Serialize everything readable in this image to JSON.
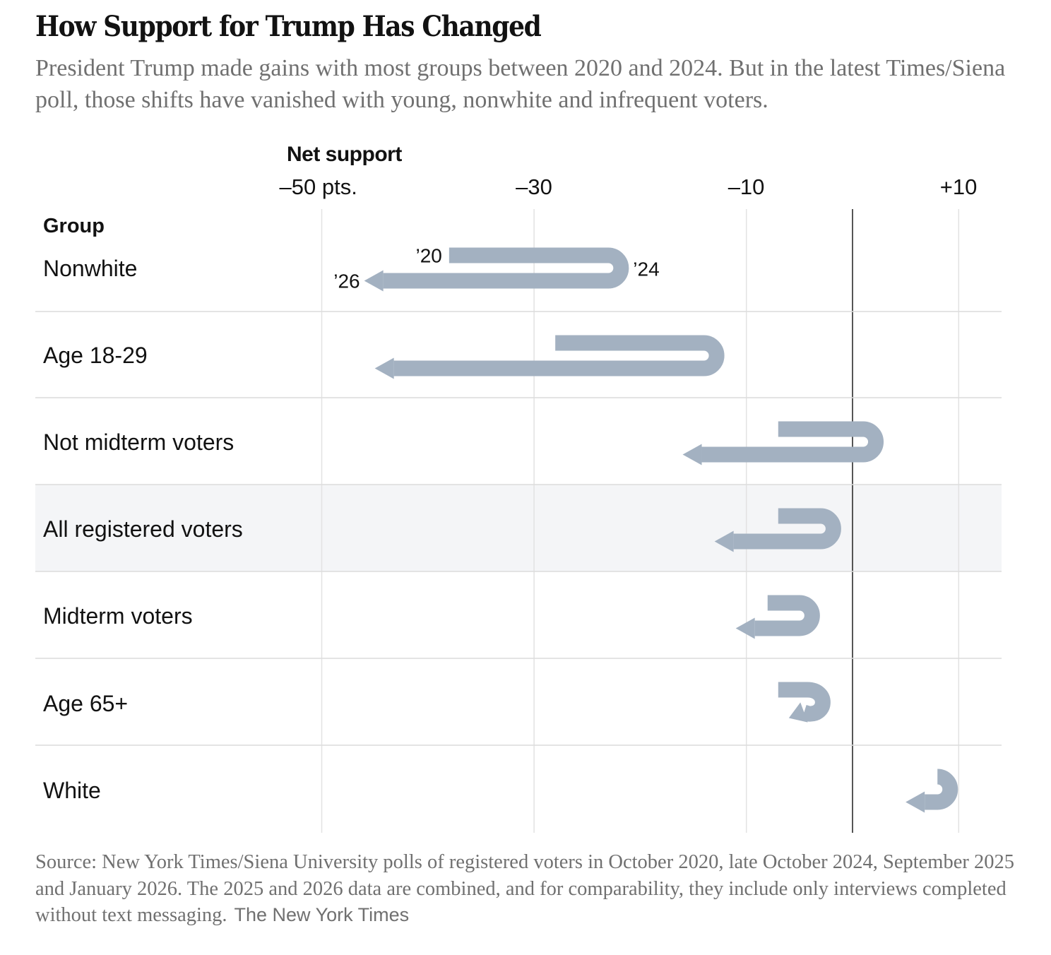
{
  "title": "How Support for Trump Has Changed",
  "subtitle": "President Trump made gains with most groups between 2020 and 2024. But in the latest Times/Siena poll, those shifts have vanished with young, nonwhite and infrequent voters.",
  "axis_title": "Net support",
  "group_header": "Group",
  "source_text": "Source: New York Times/Siena University polls of registered voters in October 2020, late October 2024, September 2025 and January 2026. The 2025 and 2026 data are combined, and for comparability, they include only interviews completed without text messaging.",
  "credit": "The New York Times",
  "colors": {
    "arrow": "#a3b1c1",
    "highlight_row": "#f4f5f7",
    "grid": "#e2e2e2",
    "zero_line": "#555555",
    "divider": "#dcdcdc",
    "text": "#121212",
    "muted_text": "#707070"
  },
  "chart_data": {
    "type": "arrow-path",
    "title": "How Support for Trump Has Changed",
    "xlabel": "Net support",
    "unit": "pts.",
    "xlim": [
      -50,
      10
    ],
    "xticks": [
      {
        "value": -50,
        "label": "–50 pts."
      },
      {
        "value": -30,
        "label": "–30"
      },
      {
        "value": -10,
        "label": "–10"
      },
      {
        "value": 10,
        "label": "+10"
      }
    ],
    "zero_line": 0,
    "grid": true,
    "year_labels": [
      "’20",
      "’24",
      "’26"
    ],
    "highlighted_group": "All registered voters",
    "series_names": [
      "2020",
      "2024",
      "2025-26"
    ],
    "groups": [
      {
        "name": "Nonwhite",
        "v2020": -38,
        "v2024": -23,
        "v2026": -46
      },
      {
        "name": "Age 18-29",
        "v2020": -28,
        "v2024": -14,
        "v2026": -45
      },
      {
        "name": "Not midterm voters",
        "v2020": -7,
        "v2024": 1,
        "v2026": -16
      },
      {
        "name": "All registered voters",
        "v2020": -7,
        "v2024": -3,
        "v2026": -13
      },
      {
        "name": "Midterm voters",
        "v2020": -8,
        "v2024": -5,
        "v2026": -11
      },
      {
        "name": "Age 65+",
        "v2020": -7,
        "v2024": -4,
        "v2026": -6
      },
      {
        "name": "White",
        "v2020": 8,
        "v2024": 8,
        "v2026": 5
      }
    ]
  }
}
